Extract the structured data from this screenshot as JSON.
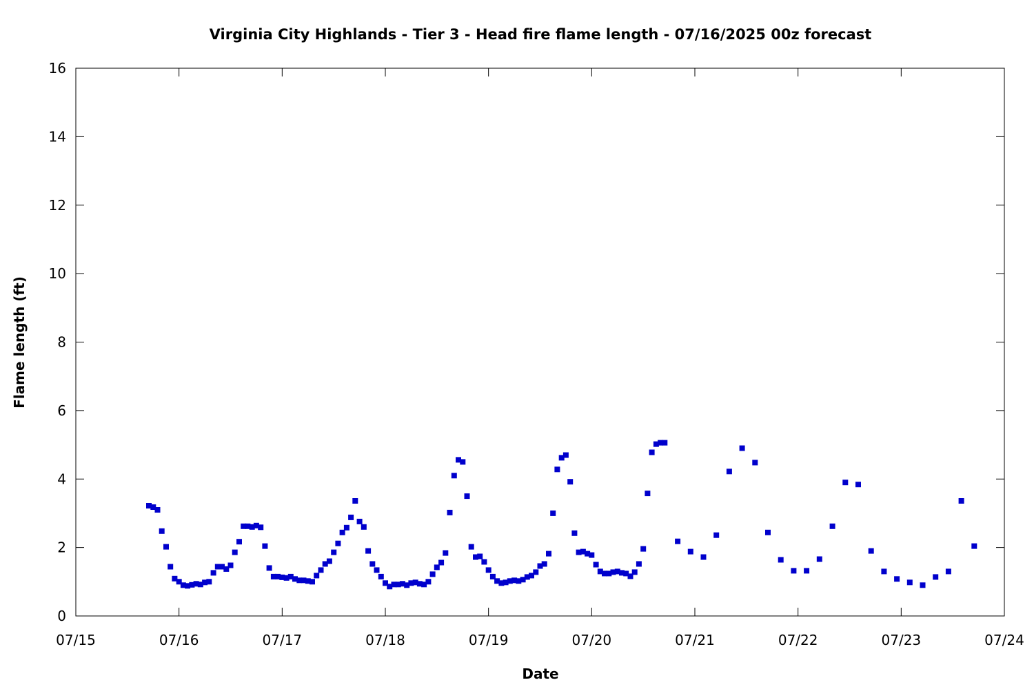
{
  "chart_data": {
    "type": "scatter",
    "title": "Virginia City Highlands - Tier 3 - Head fire flame length - 07/16/2025 00z forecast",
    "xlabel": "Date",
    "ylabel": "Flame length (ft)",
    "x_tick_labels": [
      "07/15",
      "07/16",
      "07/17",
      "07/18",
      "07/19",
      "07/20",
      "07/21",
      "07/22",
      "07/23",
      "07/24"
    ],
    "y_ticks": [
      0,
      2,
      4,
      6,
      8,
      10,
      12,
      14,
      16
    ],
    "xlim": [
      "07/15 00:00",
      "07/24 00:00"
    ],
    "ylim": [
      0,
      16
    ],
    "grid": false,
    "marker_color": "#0000cc",
    "series": [
      {
        "x": [
          "07/15 17:00",
          "07/15 18:00",
          "07/15 19:00",
          "07/15 20:00",
          "07/15 21:00",
          "07/15 22:00",
          "07/15 23:00",
          "07/16 00:00",
          "07/16 01:00",
          "07/16 02:00",
          "07/16 03:00",
          "07/16 04:00",
          "07/16 05:00",
          "07/16 06:00",
          "07/16 07:00",
          "07/16 08:00",
          "07/16 09:00",
          "07/16 10:00",
          "07/16 11:00",
          "07/16 12:00",
          "07/16 13:00",
          "07/16 14:00",
          "07/16 15:00",
          "07/16 16:00",
          "07/16 17:00",
          "07/16 18:00",
          "07/16 19:00",
          "07/16 20:00",
          "07/16 21:00",
          "07/16 22:00",
          "07/16 23:00",
          "07/17 00:00",
          "07/17 01:00",
          "07/17 02:00",
          "07/17 03:00",
          "07/17 04:00",
          "07/17 05:00",
          "07/17 06:00",
          "07/17 07:00",
          "07/17 08:00",
          "07/17 09:00",
          "07/17 10:00",
          "07/17 11:00",
          "07/17 12:00",
          "07/17 13:00",
          "07/17 14:00",
          "07/17 15:00",
          "07/17 16:00",
          "07/17 17:00",
          "07/17 18:00",
          "07/17 19:00",
          "07/17 20:00",
          "07/17 21:00",
          "07/17 22:00",
          "07/17 23:00",
          "07/18 00:00",
          "07/18 01:00",
          "07/18 02:00",
          "07/18 03:00",
          "07/18 04:00",
          "07/18 05:00",
          "07/18 06:00",
          "07/18 07:00",
          "07/18 08:00",
          "07/18 09:00",
          "07/18 10:00",
          "07/18 11:00",
          "07/18 12:00",
          "07/18 13:00",
          "07/18 14:00",
          "07/18 15:00",
          "07/18 16:00",
          "07/18 17:00",
          "07/18 18:00",
          "07/18 19:00",
          "07/18 20:00",
          "07/18 21:00",
          "07/18 22:00",
          "07/18 23:00",
          "07/19 00:00",
          "07/19 01:00",
          "07/19 02:00",
          "07/19 03:00",
          "07/19 04:00",
          "07/19 05:00",
          "07/19 06:00",
          "07/19 07:00",
          "07/19 08:00",
          "07/19 09:00",
          "07/19 10:00",
          "07/19 11:00",
          "07/19 12:00",
          "07/19 13:00",
          "07/19 14:00",
          "07/19 15:00",
          "07/19 16:00",
          "07/19 17:00",
          "07/19 18:00",
          "07/19 19:00",
          "07/19 20:00",
          "07/19 21:00",
          "07/19 22:00",
          "07/19 23:00",
          "07/20 00:00",
          "07/20 01:00",
          "07/20 02:00",
          "07/20 03:00",
          "07/20 04:00",
          "07/20 05:00",
          "07/20 06:00",
          "07/20 07:00",
          "07/20 08:00",
          "07/20 09:00",
          "07/20 10:00",
          "07/20 11:00",
          "07/20 12:00",
          "07/20 13:00",
          "07/20 14:00",
          "07/20 15:00",
          "07/20 16:00",
          "07/20 17:00",
          "07/20 20:00",
          "07/20 23:00",
          "07/21 02:00",
          "07/21 05:00",
          "07/21 08:00",
          "07/21 11:00",
          "07/21 14:00",
          "07/21 17:00",
          "07/21 20:00",
          "07/21 23:00",
          "07/22 02:00",
          "07/22 05:00",
          "07/22 08:00",
          "07/22 11:00",
          "07/22 14:00",
          "07/22 17:00",
          "07/22 20:00",
          "07/22 23:00",
          "07/23 02:00",
          "07/23 05:00",
          "07/23 08:00",
          "07/23 11:00",
          "07/23 14:00",
          "07/23 17:00"
        ],
        "y": [
          3.22,
          3.18,
          3.1,
          2.48,
          2.02,
          1.44,
          1.09,
          1.0,
          0.9,
          0.88,
          0.91,
          0.94,
          0.92,
          0.98,
          1.0,
          1.26,
          1.44,
          1.44,
          1.37,
          1.48,
          1.86,
          2.17,
          2.62,
          2.62,
          2.6,
          2.64,
          2.59,
          2.04,
          1.4,
          1.15,
          1.15,
          1.13,
          1.11,
          1.15,
          1.08,
          1.04,
          1.04,
          1.02,
          1.0,
          1.18,
          1.34,
          1.52,
          1.6,
          1.86,
          2.12,
          2.44,
          2.58,
          2.88,
          3.36,
          2.76,
          2.6,
          1.9,
          1.52,
          1.34,
          1.15,
          0.96,
          0.86,
          0.92,
          0.92,
          0.94,
          0.9,
          0.96,
          0.98,
          0.94,
          0.92,
          1.0,
          1.22,
          1.42,
          1.56,
          1.84,
          3.02,
          4.1,
          4.56,
          4.5,
          3.5,
          2.02,
          1.72,
          1.74,
          1.58,
          1.34,
          1.15,
          1.02,
          0.96,
          0.98,
          1.02,
          1.04,
          1.02,
          1.06,
          1.14,
          1.18,
          1.28,
          1.46,
          1.52,
          1.82,
          3.0,
          4.28,
          4.62,
          4.7,
          3.92,
          2.42,
          1.86,
          1.88,
          1.82,
          1.78,
          1.5,
          1.3,
          1.24,
          1.24,
          1.28,
          1.3,
          1.26,
          1.24,
          1.16,
          1.28,
          1.52,
          1.96,
          3.58,
          4.78,
          5.02,
          5.06,
          5.06,
          2.18,
          1.88,
          1.72,
          2.36,
          4.22,
          4.9,
          4.48,
          2.44,
          1.64,
          1.32,
          1.32,
          1.66,
          2.62,
          3.9,
          3.84,
          1.9,
          1.3,
          1.08,
          0.98,
          0.9,
          1.14,
          1.3,
          3.36,
          2.04
        ]
      }
    ]
  }
}
